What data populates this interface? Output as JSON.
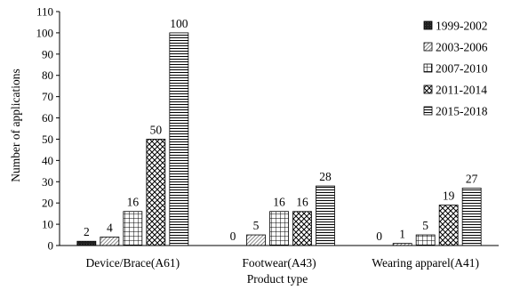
{
  "chart_data": {
    "type": "bar",
    "xlabel": "Product type",
    "ylabel": "Number of applications",
    "ylim": [
      0,
      110
    ],
    "yticks": [
      0,
      10,
      20,
      30,
      40,
      50,
      60,
      70,
      80,
      90,
      100,
      110
    ],
    "grid": false,
    "legend_position": "top-right",
    "categories": [
      "Device/Brace(A61)",
      "Footwear(A43)",
      "Wearing apparel(A41)"
    ],
    "series": [
      {
        "name": "1999-2002",
        "values": [
          2,
          0,
          0
        ],
        "pattern": "solid-dark",
        "labels": [
          "2",
          "0",
          "0"
        ]
      },
      {
        "name": "2003-2006",
        "values": [
          4,
          5,
          1
        ],
        "pattern": "diagonal-stripes",
        "labels": [
          "4",
          "5",
          "1"
        ]
      },
      {
        "name": "2007-2010",
        "values": [
          16,
          16,
          5
        ],
        "pattern": "grid",
        "labels": [
          "16",
          "16",
          "5"
        ]
      },
      {
        "name": "2011-2014",
        "values": [
          50,
          16,
          19
        ],
        "pattern": "crosshatch",
        "labels": [
          "50",
          "16",
          "19"
        ]
      },
      {
        "name": "2015-2018",
        "values": [
          100,
          28,
          27
        ],
        "pattern": "horizontal-lines",
        "labels": [
          "100",
          "28",
          "27"
        ]
      }
    ]
  }
}
